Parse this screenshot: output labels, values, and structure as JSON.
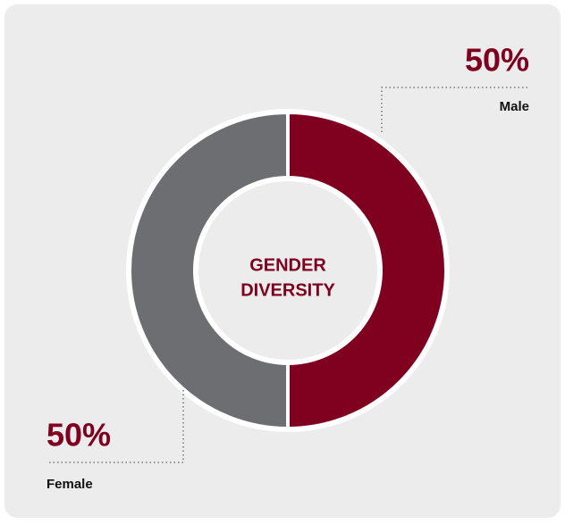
{
  "chart_data": {
    "type": "donut",
    "center_label": [
      "GENDER",
      "DIVERSITY"
    ],
    "categories": [
      "Male",
      "Female"
    ],
    "values": [
      50,
      50
    ],
    "value_labels": [
      "50%",
      "50%"
    ],
    "colors": [
      "#800020",
      "#6d6e71"
    ]
  }
}
